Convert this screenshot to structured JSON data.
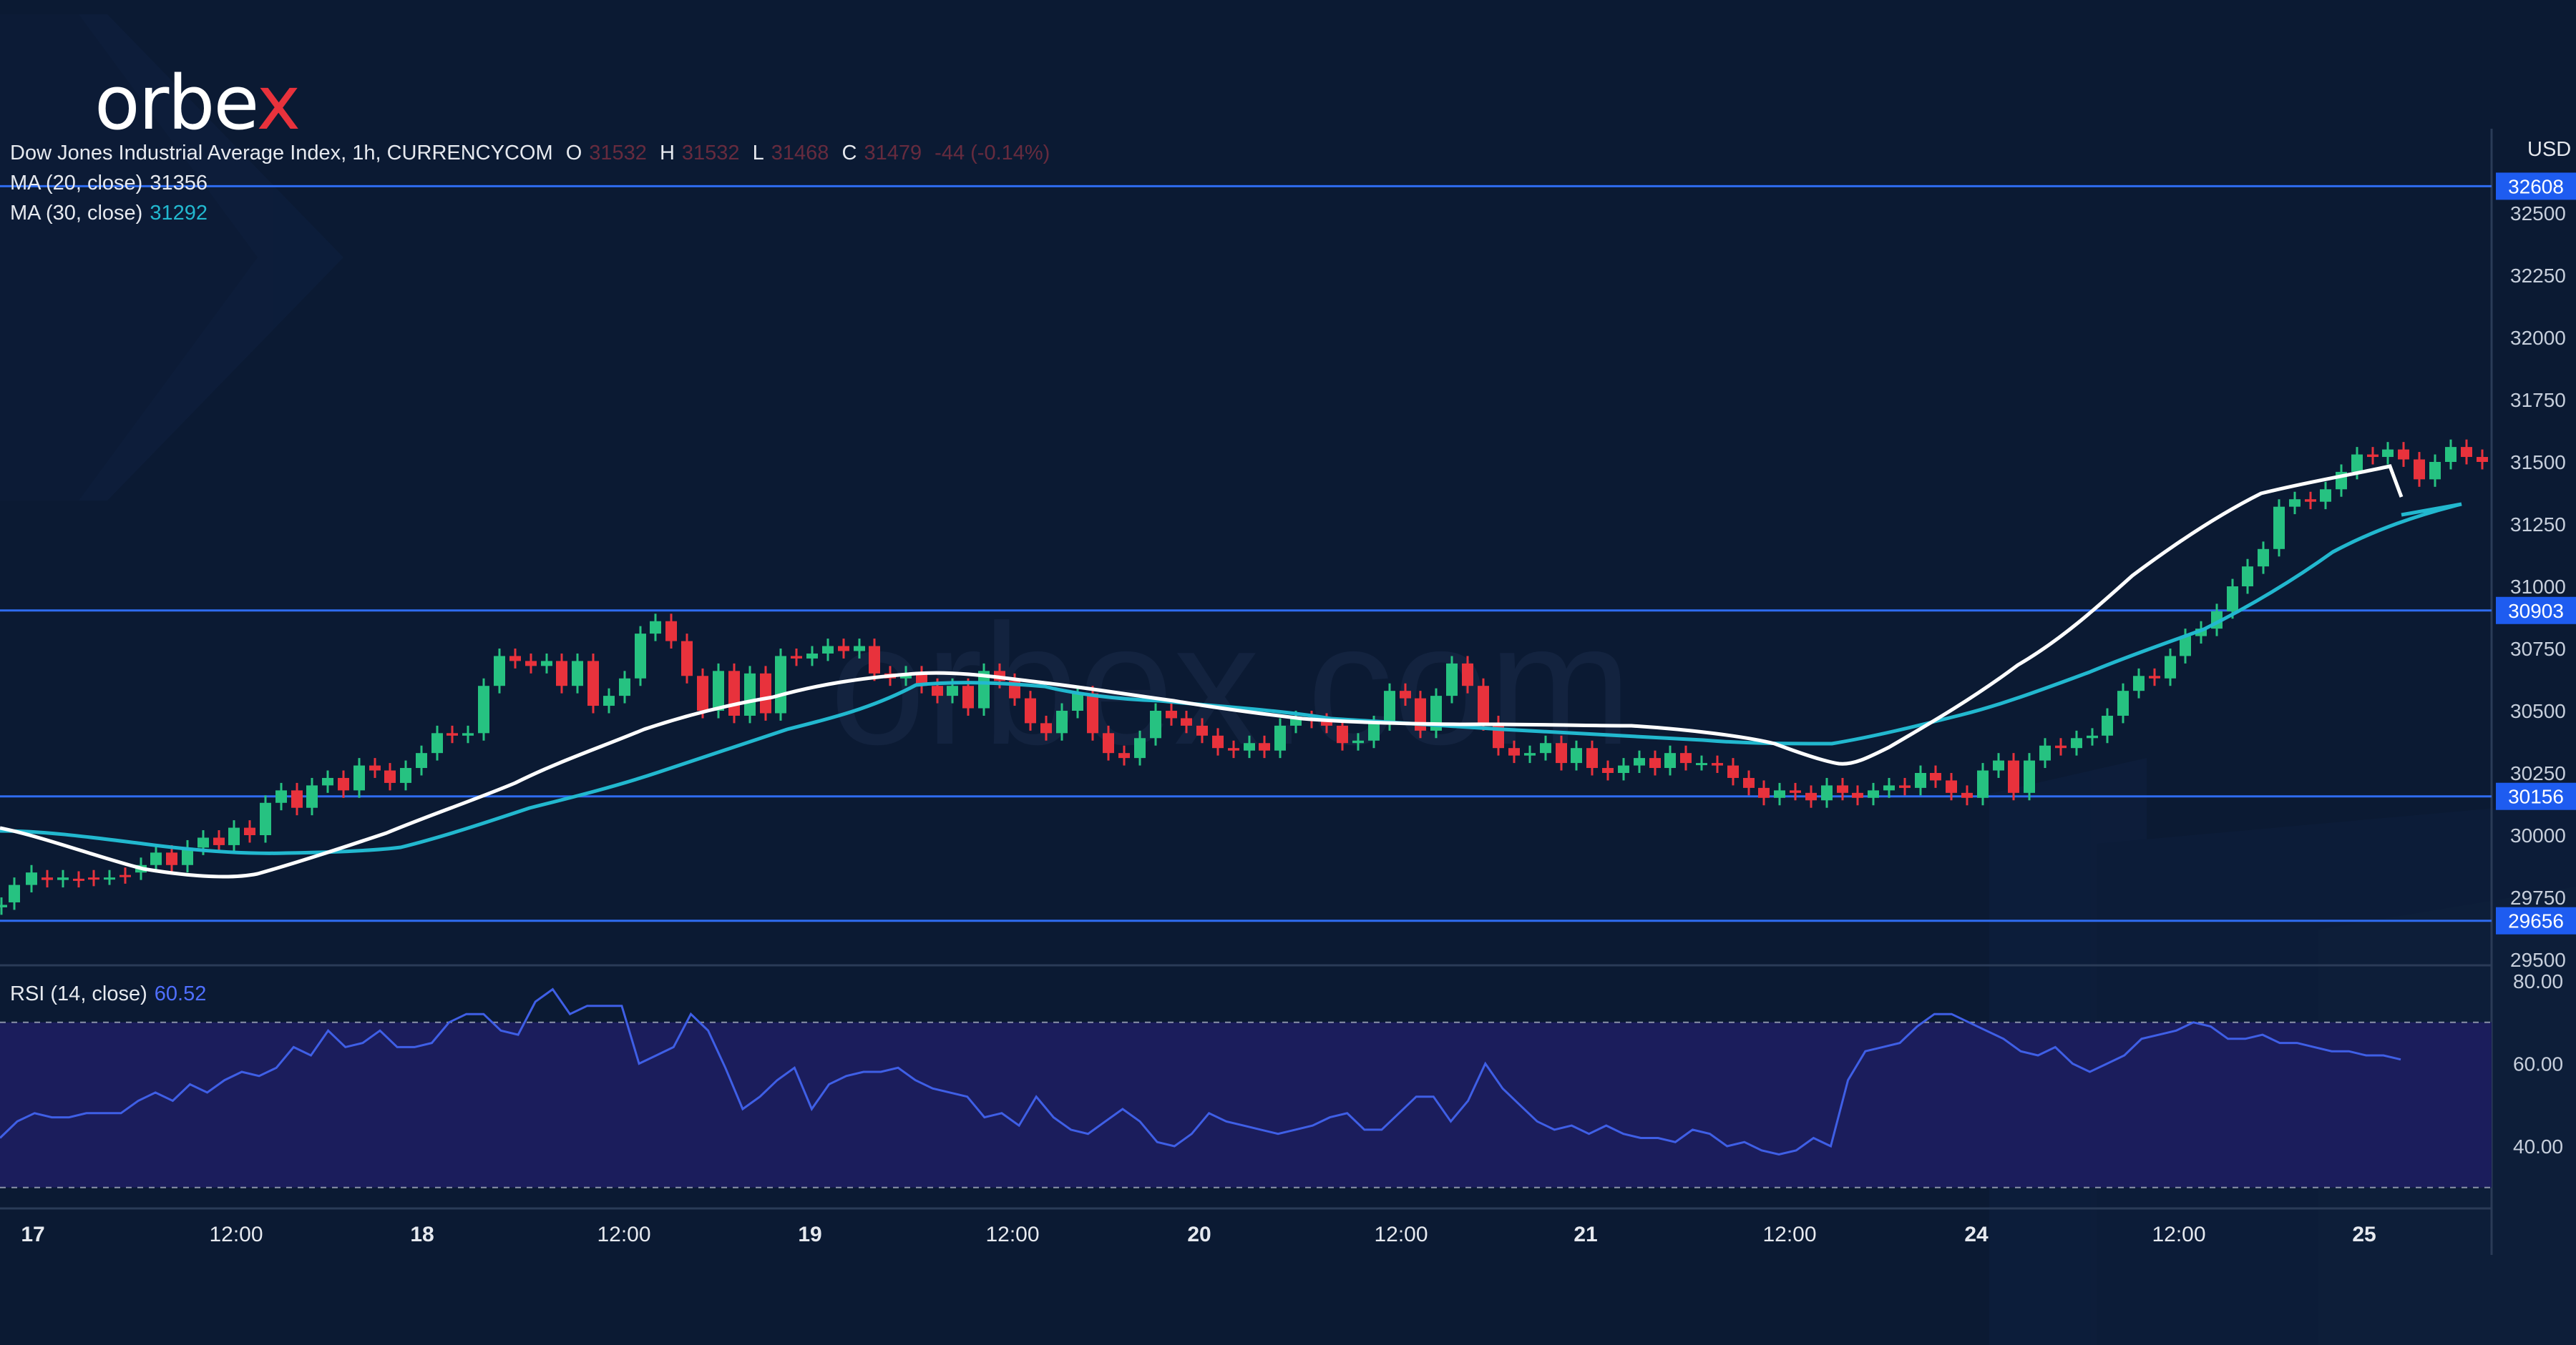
{
  "brand": {
    "logo_text": "orbex",
    "logo_accent": "x",
    "watermark": "orbex.com"
  },
  "legend": {
    "symbol": "Dow Jones Industrial Average Index, 1h, CURRENCYCOM",
    "o_label": "O",
    "o_value": "31532",
    "h_label": "H",
    "h_value": "31532",
    "l_label": "L",
    "l_value": "31468",
    "c_label": "C",
    "c_value": "31479",
    "change": "-44 (-0.14%)",
    "ma20_label": "MA (20, close)",
    "ma20_value": "31356",
    "ma30_label": "MA (30, close)",
    "ma30_value": "31292",
    "rsi_label": "RSI (14, close)",
    "rsi_value": "60.52"
  },
  "colors": {
    "background": "#0b1a33",
    "up": "#26c281",
    "down": "#e8323c",
    "ma20": "#ffffff",
    "ma30": "#22b8cf",
    "level": "#2f6cf0",
    "rsi_line": "#3f5fe6",
    "rsi_band": "#1b1d5c",
    "text": "#e6e9ef"
  },
  "chart_data": [
    {
      "type": "candlestick",
      "title": "Dow Jones Industrial Average Index, 1h, CURRENCYCOM",
      "ylabel": "USD",
      "ylim": [
        29500,
        32750
      ],
      "y_ticks": [
        "32500",
        "32250",
        "32000",
        "31750",
        "31500",
        "31250",
        "31000",
        "30750",
        "30500",
        "30250",
        "30000",
        "29750",
        "29500"
      ],
      "x_ticks": [
        "17",
        "12:00",
        "18",
        "12:00",
        "19",
        "12:00",
        "20",
        "12:00",
        "21",
        "12:00",
        "24",
        "12:00",
        "25"
      ],
      "horizontal_levels": [
        32608,
        30903,
        30156,
        29656
      ],
      "level_labels": [
        "32608",
        "30903",
        "30156",
        "29656"
      ],
      "series": [
        {
          "name": "MA (20, close)",
          "last": 31356
        },
        {
          "name": "MA (30, close)",
          "last": 31292
        }
      ],
      "candles": [
        {
          "x": 2,
          "o": 29710,
          "c": 29720
        },
        {
          "x": 20,
          "o": 29730,
          "c": 29800
        },
        {
          "x": 44,
          "o": 29800,
          "c": 29850
        },
        {
          "x": 66,
          "o": 29830,
          "c": 29820
        },
        {
          "x": 88,
          "o": 29820,
          "c": 29830
        },
        {
          "x": 110,
          "o": 29825,
          "c": 29820
        },
        {
          "x": 131,
          "o": 29830,
          "c": 29825
        },
        {
          "x": 153,
          "o": 29830,
          "c": 29830
        },
        {
          "x": 175,
          "o": 29840,
          "c": 29835
        },
        {
          "x": 197,
          "o": 29850,
          "c": 29880
        },
        {
          "x": 218,
          "o": 29880,
          "c": 29930
        },
        {
          "x": 240,
          "o": 29930,
          "c": 29880
        },
        {
          "x": 262,
          "o": 29880,
          "c": 29950
        },
        {
          "x": 284,
          "o": 29950,
          "c": 29990
        },
        {
          "x": 306,
          "o": 29990,
          "c": 29960
        },
        {
          "x": 327,
          "o": 29960,
          "c": 30030
        },
        {
          "x": 349,
          "o": 30030,
          "c": 30000
        },
        {
          "x": 371,
          "o": 30000,
          "c": 30130
        },
        {
          "x": 393,
          "o": 30130,
          "c": 30180
        },
        {
          "x": 415,
          "o": 30180,
          "c": 30110
        },
        {
          "x": 436,
          "o": 30110,
          "c": 30200
        },
        {
          "x": 458,
          "o": 30200,
          "c": 30230
        },
        {
          "x": 480,
          "o": 30230,
          "c": 30180
        },
        {
          "x": 502,
          "o": 30180,
          "c": 30280
        },
        {
          "x": 524,
          "o": 30280,
          "c": 30260
        },
        {
          "x": 545,
          "o": 30260,
          "c": 30210
        },
        {
          "x": 567,
          "o": 30210,
          "c": 30270
        },
        {
          "x": 589,
          "o": 30270,
          "c": 30330
        },
        {
          "x": 611,
          "o": 30330,
          "c": 30410
        },
        {
          "x": 632,
          "o": 30410,
          "c": 30400
        },
        {
          "x": 654,
          "o": 30400,
          "c": 30410
        },
        {
          "x": 676,
          "o": 30410,
          "c": 30600
        },
        {
          "x": 698,
          "o": 30600,
          "c": 30720
        },
        {
          "x": 720,
          "o": 30720,
          "c": 30700
        },
        {
          "x": 742,
          "o": 30700,
          "c": 30680
        },
        {
          "x": 764,
          "o": 30680,
          "c": 30700
        },
        {
          "x": 785,
          "o": 30700,
          "c": 30600
        },
        {
          "x": 807,
          "o": 30600,
          "c": 30700
        },
        {
          "x": 829,
          "o": 30700,
          "c": 30520
        },
        {
          "x": 851,
          "o": 30520,
          "c": 30560
        },
        {
          "x": 873,
          "o": 30560,
          "c": 30630
        },
        {
          "x": 895,
          "o": 30630,
          "c": 30810
        },
        {
          "x": 916,
          "o": 30810,
          "c": 30860
        },
        {
          "x": 938,
          "o": 30860,
          "c": 30780
        },
        {
          "x": 960,
          "o": 30780,
          "c": 30640
        },
        {
          "x": 982,
          "o": 30640,
          "c": 30500
        },
        {
          "x": 1004,
          "o": 30500,
          "c": 30660
        },
        {
          "x": 1026,
          "o": 30660,
          "c": 30480
        },
        {
          "x": 1048,
          "o": 30480,
          "c": 30650
        },
        {
          "x": 1070,
          "o": 30650,
          "c": 30490
        },
        {
          "x": 1091,
          "o": 30490,
          "c": 30720
        },
        {
          "x": 1113,
          "o": 30720,
          "c": 30710
        },
        {
          "x": 1135,
          "o": 30710,
          "c": 30730
        },
        {
          "x": 1157,
          "o": 30730,
          "c": 30760
        },
        {
          "x": 1179,
          "o": 30760,
          "c": 30740
        },
        {
          "x": 1201,
          "o": 30740,
          "c": 30760
        },
        {
          "x": 1222,
          "o": 30760,
          "c": 30650
        },
        {
          "x": 1244,
          "o": 30650,
          "c": 30630
        },
        {
          "x": 1266,
          "o": 30630,
          "c": 30650
        },
        {
          "x": 1288,
          "o": 30650,
          "c": 30600
        },
        {
          "x": 1310,
          "o": 30600,
          "c": 30560
        },
        {
          "x": 1331,
          "o": 30560,
          "c": 30600
        },
        {
          "x": 1353,
          "o": 30600,
          "c": 30510
        },
        {
          "x": 1375,
          "o": 30510,
          "c": 30660
        },
        {
          "x": 1397,
          "o": 30660,
          "c": 30620
        },
        {
          "x": 1418,
          "o": 30620,
          "c": 30550
        },
        {
          "x": 1440,
          "o": 30550,
          "c": 30450
        },
        {
          "x": 1462,
          "o": 30450,
          "c": 30410
        },
        {
          "x": 1484,
          "o": 30410,
          "c": 30500
        },
        {
          "x": 1506,
          "o": 30500,
          "c": 30570
        },
        {
          "x": 1527,
          "o": 30570,
          "c": 30410
        },
        {
          "x": 1549,
          "o": 30410,
          "c": 30330
        },
        {
          "x": 1571,
          "o": 30330,
          "c": 30310
        },
        {
          "x": 1593,
          "o": 30310,
          "c": 30390
        },
        {
          "x": 1615,
          "o": 30390,
          "c": 30500
        },
        {
          "x": 1637,
          "o": 30500,
          "c": 30470
        },
        {
          "x": 1658,
          "o": 30470,
          "c": 30440
        },
        {
          "x": 1680,
          "o": 30440,
          "c": 30400
        },
        {
          "x": 1702,
          "o": 30400,
          "c": 30350
        },
        {
          "x": 1724,
          "o": 30350,
          "c": 30340
        },
        {
          "x": 1746,
          "o": 30340,
          "c": 30370
        },
        {
          "x": 1767,
          "o": 30370,
          "c": 30340
        },
        {
          "x": 1789,
          "o": 30340,
          "c": 30440
        },
        {
          "x": 1811,
          "o": 30440,
          "c": 30470
        },
        {
          "x": 1833,
          "o": 30470,
          "c": 30460
        },
        {
          "x": 1854,
          "o": 30460,
          "c": 30440
        },
        {
          "x": 1876,
          "o": 30440,
          "c": 30370
        },
        {
          "x": 1898,
          "o": 30370,
          "c": 30380
        },
        {
          "x": 1920,
          "o": 30380,
          "c": 30450
        },
        {
          "x": 1942,
          "o": 30450,
          "c": 30580
        },
        {
          "x": 1964,
          "o": 30580,
          "c": 30550
        },
        {
          "x": 1985,
          "o": 30550,
          "c": 30420
        },
        {
          "x": 2007,
          "o": 30420,
          "c": 30560
        },
        {
          "x": 2029,
          "o": 30560,
          "c": 30690
        },
        {
          "x": 2051,
          "o": 30690,
          "c": 30600
        },
        {
          "x": 2073,
          "o": 30600,
          "c": 30450
        },
        {
          "x": 2094,
          "o": 30450,
          "c": 30350
        },
        {
          "x": 2116,
          "o": 30350,
          "c": 30320
        },
        {
          "x": 2138,
          "o": 30320,
          "c": 30330
        },
        {
          "x": 2160,
          "o": 30330,
          "c": 30370
        },
        {
          "x": 2182,
          "o": 30370,
          "c": 30290
        },
        {
          "x": 2203,
          "o": 30290,
          "c": 30350
        },
        {
          "x": 2225,
          "o": 30350,
          "c": 30270
        },
        {
          "x": 2247,
          "o": 30270,
          "c": 30250
        },
        {
          "x": 2269,
          "o": 30250,
          "c": 30280
        },
        {
          "x": 2291,
          "o": 30280,
          "c": 30310
        },
        {
          "x": 2313,
          "o": 30310,
          "c": 30270
        },
        {
          "x": 2334,
          "o": 30270,
          "c": 30330
        },
        {
          "x": 2356,
          "o": 30330,
          "c": 30290
        },
        {
          "x": 2378,
          "o": 30290,
          "c": 30290
        },
        {
          "x": 2400,
          "o": 30290,
          "c": 30280
        },
        {
          "x": 2422,
          "o": 30280,
          "c": 30230
        },
        {
          "x": 2444,
          "o": 30230,
          "c": 30190
        },
        {
          "x": 2465,
          "o": 30190,
          "c": 30150
        },
        {
          "x": 2487,
          "o": 30150,
          "c": 30180
        },
        {
          "x": 2509,
          "o": 30180,
          "c": 30170
        },
        {
          "x": 2531,
          "o": 30170,
          "c": 30140
        },
        {
          "x": 2553,
          "o": 30140,
          "c": 30200
        },
        {
          "x": 2575,
          "o": 30200,
          "c": 30170
        },
        {
          "x": 2596,
          "o": 30170,
          "c": 30150
        },
        {
          "x": 2618,
          "o": 30150,
          "c": 30180
        },
        {
          "x": 2640,
          "o": 30180,
          "c": 30200
        },
        {
          "x": 2662,
          "o": 30200,
          "c": 30190
        },
        {
          "x": 2684,
          "o": 30190,
          "c": 30250
        },
        {
          "x": 2705,
          "o": 30250,
          "c": 30220
        },
        {
          "x": 2727,
          "o": 30220,
          "c": 30170
        },
        {
          "x": 2749,
          "o": 30170,
          "c": 30150
        },
        {
          "x": 2771,
          "o": 30150,
          "c": 30260
        },
        {
          "x": 2793,
          "o": 30260,
          "c": 30300
        },
        {
          "x": 2814,
          "o": 30300,
          "c": 30170
        },
        {
          "x": 2836,
          "o": 30170,
          "c": 30300
        },
        {
          "x": 2858,
          "o": 30300,
          "c": 30360
        },
        {
          "x": 2880,
          "o": 30360,
          "c": 30350
        },
        {
          "x": 2902,
          "o": 30350,
          "c": 30390
        },
        {
          "x": 2924,
          "o": 30390,
          "c": 30400
        },
        {
          "x": 2945,
          "o": 30400,
          "c": 30480
        },
        {
          "x": 2967,
          "o": 30480,
          "c": 30580
        },
        {
          "x": 2989,
          "o": 30580,
          "c": 30640
        },
        {
          "x": 3011,
          "o": 30640,
          "c": 30630
        },
        {
          "x": 3033,
          "o": 30630,
          "c": 30720
        },
        {
          "x": 3054,
          "o": 30720,
          "c": 30800
        },
        {
          "x": 3076,
          "o": 30800,
          "c": 30830
        },
        {
          "x": 3098,
          "o": 30830,
          "c": 30900
        },
        {
          "x": 3120,
          "o": 30900,
          "c": 31000
        },
        {
          "x": 3141,
          "o": 31000,
          "c": 31080
        },
        {
          "x": 3163,
          "o": 31080,
          "c": 31150
        },
        {
          "x": 3185,
          "o": 31150,
          "c": 31320
        },
        {
          "x": 3207,
          "o": 31320,
          "c": 31350
        },
        {
          "x": 3229,
          "o": 31350,
          "c": 31340
        },
        {
          "x": 3250,
          "o": 31340,
          "c": 31390
        },
        {
          "x": 3272,
          "o": 31390,
          "c": 31460
        },
        {
          "x": 3294,
          "o": 31460,
          "c": 31530
        },
        {
          "x": 3316,
          "o": 31530,
          "c": 31520
        },
        {
          "x": 3337,
          "o": 31520,
          "c": 31550
        },
        {
          "x": 3359,
          "o": 31550,
          "c": 31510
        },
        {
          "x": 3381,
          "o": 31510,
          "c": 31430
        },
        {
          "x": 3403,
          "o": 31430,
          "c": 31500
        },
        {
          "x": 3425,
          "o": 31500,
          "c": 31560
        },
        {
          "x": 3447,
          "o": 31560,
          "c": 31520
        },
        {
          "x": 3469,
          "o": 31520,
          "c": 31500
        }
      ]
    },
    {
      "type": "line",
      "title": "RSI (14, close)",
      "ylim": [
        30,
        85
      ],
      "y_ticks": [
        "80.00",
        "60.00",
        "40.00"
      ],
      "bands": [
        30,
        70
      ],
      "last_value": 60.52,
      "values": [
        42,
        46,
        48,
        47,
        47,
        48,
        48,
        48,
        51,
        53,
        51,
        55,
        53,
        56,
        58,
        57,
        59,
        64,
        62,
        68,
        64,
        65,
        68,
        64,
        64,
        65,
        70,
        72,
        72,
        68,
        67,
        75,
        78,
        72,
        74,
        74,
        74,
        60,
        62,
        64,
        72,
        68,
        59,
        49,
        52,
        56,
        59,
        49,
        55,
        57,
        58,
        58,
        59,
        56,
        54,
        53,
        52,
        47,
        48,
        45,
        52,
        47,
        44,
        43,
        46,
        49,
        46,
        41,
        40,
        43,
        48,
        46,
        45,
        44,
        43,
        44,
        45,
        47,
        48,
        44,
        44,
        48,
        52,
        52,
        46,
        51,
        60,
        54,
        50,
        46,
        44,
        45,
        43,
        45,
        43,
        42,
        42,
        41,
        44,
        43,
        40,
        41,
        39,
        38,
        39,
        42,
        40,
        56,
        63,
        64,
        65,
        69,
        72,
        72,
        70,
        68,
        66,
        63,
        62,
        64,
        60,
        58,
        60,
        62,
        66,
        67,
        68,
        70,
        69,
        66,
        66,
        67,
        65,
        65,
        64,
        63,
        63,
        62,
        62,
        61
      ]
    }
  ]
}
